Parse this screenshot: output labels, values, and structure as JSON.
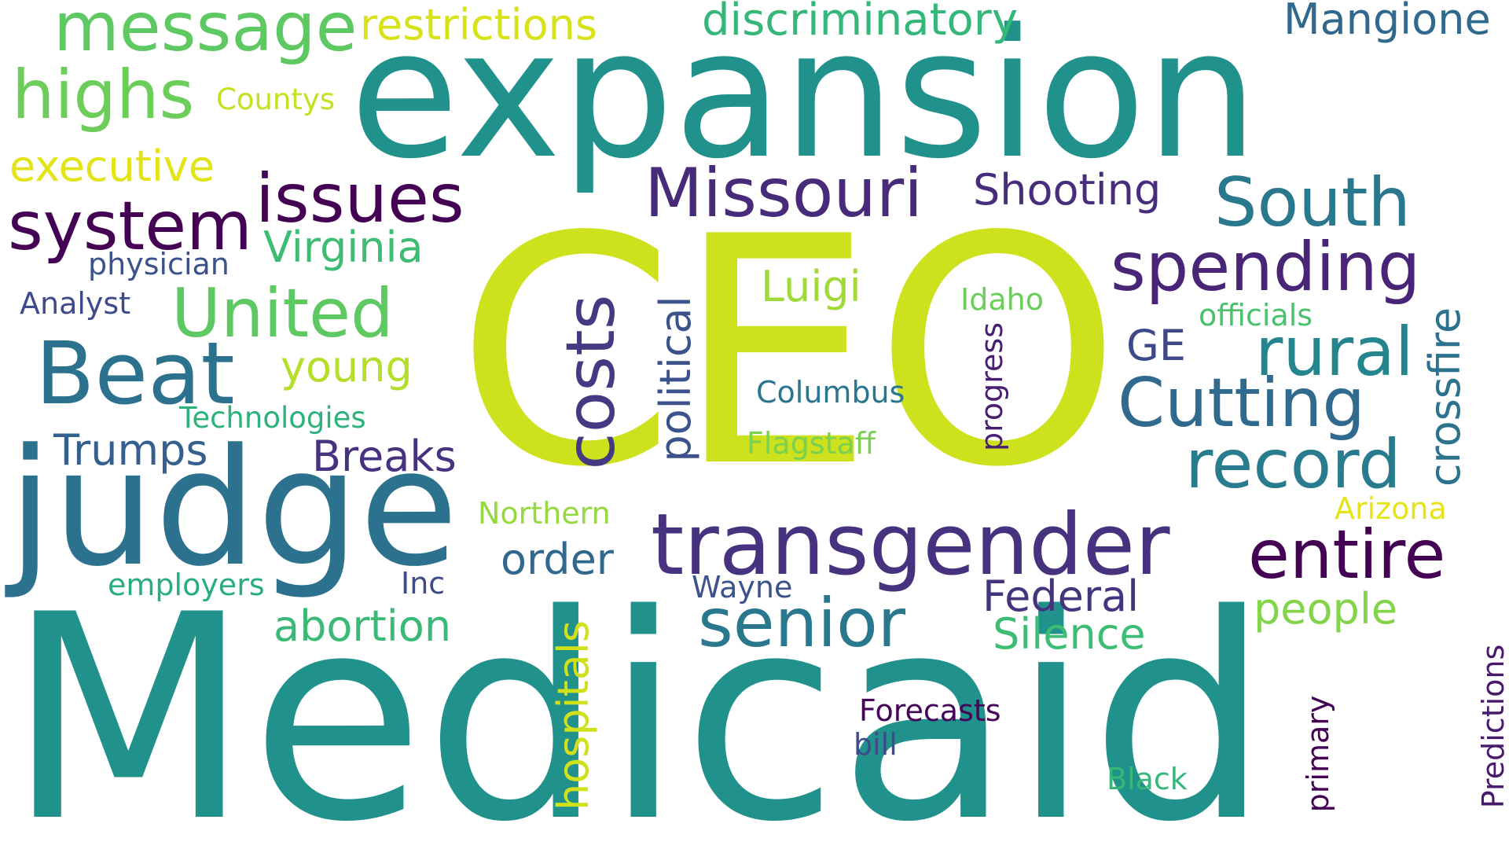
{
  "words": [
    {
      "text": "Medicaid",
      "color": "#21918c"
    },
    {
      "text": "CEO",
      "color": "#cde11d"
    },
    {
      "text": "expansion",
      "color": "#21918c"
    },
    {
      "text": "judge",
      "color": "#2c728e"
    },
    {
      "text": "transgender",
      "color": "#46327e"
    },
    {
      "text": "message",
      "color": "#5ec962"
    },
    {
      "text": "restrictions",
      "color": "#d8e219"
    },
    {
      "text": "discriminatory",
      "color": "#35b779"
    },
    {
      "text": "Mangione",
      "color": "#31688e"
    },
    {
      "text": "highs",
      "color": "#6ccd5a"
    },
    {
      "text": "Countys",
      "color": "#c5e021"
    },
    {
      "text": "executive",
      "color": "#e2e418"
    },
    {
      "text": "issues",
      "color": "#440154"
    },
    {
      "text": "system",
      "color": "#440154"
    },
    {
      "text": "Missouri",
      "color": "#472a7a"
    },
    {
      "text": "Shooting",
      "color": "#472d7b"
    },
    {
      "text": "South",
      "color": "#2a788e"
    },
    {
      "text": "Virginia",
      "color": "#3dbc74"
    },
    {
      "text": "physician",
      "color": "#3b528b"
    },
    {
      "text": "Analyst",
      "color": "#3e4a89"
    },
    {
      "text": "United",
      "color": "#5ec962"
    },
    {
      "text": "Beat",
      "color": "#2c728e"
    },
    {
      "text": "young",
      "color": "#b5de2b"
    },
    {
      "text": "Technologies",
      "color": "#2db27d"
    },
    {
      "text": "Trumps",
      "color": "#355f8d"
    },
    {
      "text": "Breaks",
      "color": "#46327e"
    },
    {
      "text": "costs",
      "color": "#443983"
    },
    {
      "text": "political",
      "color": "#3b528b"
    },
    {
      "text": "Luigi",
      "color": "#a0da39"
    },
    {
      "text": "Idaho",
      "color": "#6ccd5a"
    },
    {
      "text": "spending",
      "color": "#482576"
    },
    {
      "text": "officials",
      "color": "#4ac16d"
    },
    {
      "text": "rural",
      "color": "#25858e"
    },
    {
      "text": "GE",
      "color": "#3e4989"
    },
    {
      "text": "crossfire",
      "color": "#2c728e"
    },
    {
      "text": "progress",
      "color": "#481f70"
    },
    {
      "text": "Cutting",
      "color": "#306a8e"
    },
    {
      "text": "Columbus",
      "color": "#2a768e"
    },
    {
      "text": "Flagstaff",
      "color": "#7ad151"
    },
    {
      "text": "record",
      "color": "#287c8e"
    },
    {
      "text": "Arizona",
      "color": "#e5e419"
    },
    {
      "text": "Northern",
      "color": "#95d840"
    },
    {
      "text": "order",
      "color": "#31688e"
    },
    {
      "text": "entire",
      "color": "#440154"
    },
    {
      "text": "employers",
      "color": "#27ad81"
    },
    {
      "text": "Inc",
      "color": "#3e4a89"
    },
    {
      "text": "Wayne",
      "color": "#3b528b"
    },
    {
      "text": "Federal",
      "color": "#46337e"
    },
    {
      "text": "people",
      "color": "#84d44b"
    },
    {
      "text": "senior",
      "color": "#2a788e"
    },
    {
      "text": "abortion",
      "color": "#3aba76"
    },
    {
      "text": "Silence",
      "color": "#3dbc74"
    },
    {
      "text": "hospitals",
      "color": "#d0e11c"
    },
    {
      "text": "Forecasts",
      "color": "#450559"
    },
    {
      "text": "bill",
      "color": "#3e4a89"
    },
    {
      "text": "Black",
      "color": "#35b779"
    },
    {
      "text": "primary",
      "color": "#440154"
    },
    {
      "text": "Predictions",
      "color": "#481a6c"
    }
  ]
}
